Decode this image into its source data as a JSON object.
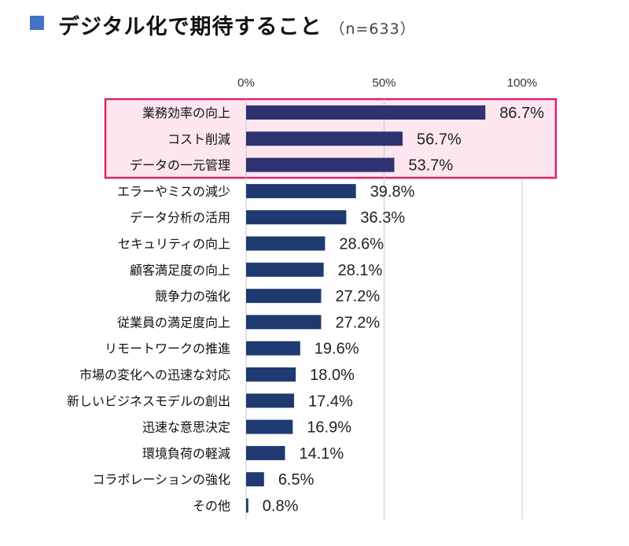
{
  "title": "デジタル化で期待すること",
  "sample": "（n=633）",
  "chart_data": {
    "type": "bar",
    "orientation": "horizontal",
    "title": "デジタル化で期待すること",
    "categories": [
      "業務効率の向上",
      "コスト削減",
      "データの一元管理",
      "エラーやミスの減少",
      "データ分析の活用",
      "セキュリティの向上",
      "顧客満足度の向上",
      "競争力の強化",
      "従業員の満足度向上",
      "リモートワークの推進",
      "市場の変化への迅速な対応",
      "新しいビジネスモデルの創出",
      "迅速な意思決定",
      "環境負荷の軽減",
      "コラボレーションの強化",
      "その他"
    ],
    "values": [
      86.7,
      56.7,
      53.7,
      39.8,
      36.3,
      28.6,
      28.1,
      27.2,
      27.2,
      19.6,
      18.0,
      17.4,
      16.9,
      14.1,
      6.5,
      0.8
    ],
    "value_labels": [
      "86.7%",
      "56.7%",
      "53.7%",
      "39.8%",
      "36.3%",
      "28.6%",
      "28.1%",
      "27.2%",
      "27.2%",
      "19.6%",
      "18.0%",
      "17.4%",
      "16.9%",
      "14.1%",
      "6.5%",
      "0.8%"
    ],
    "xlim": [
      0,
      100
    ],
    "xticks": [
      "0%",
      "50%",
      "100%"
    ],
    "grid": true,
    "highlighted_categories": [
      "業務効率の向上",
      "コスト削減",
      "データの一元管理"
    ],
    "colors": {
      "bar": "#1f3a70",
      "bar_highlight": "#2d3270",
      "highlight_fill": "#fde6ef",
      "highlight_border": "#d6246e",
      "title_square": "#4472c4",
      "grid": "#c8c8c8"
    }
  }
}
